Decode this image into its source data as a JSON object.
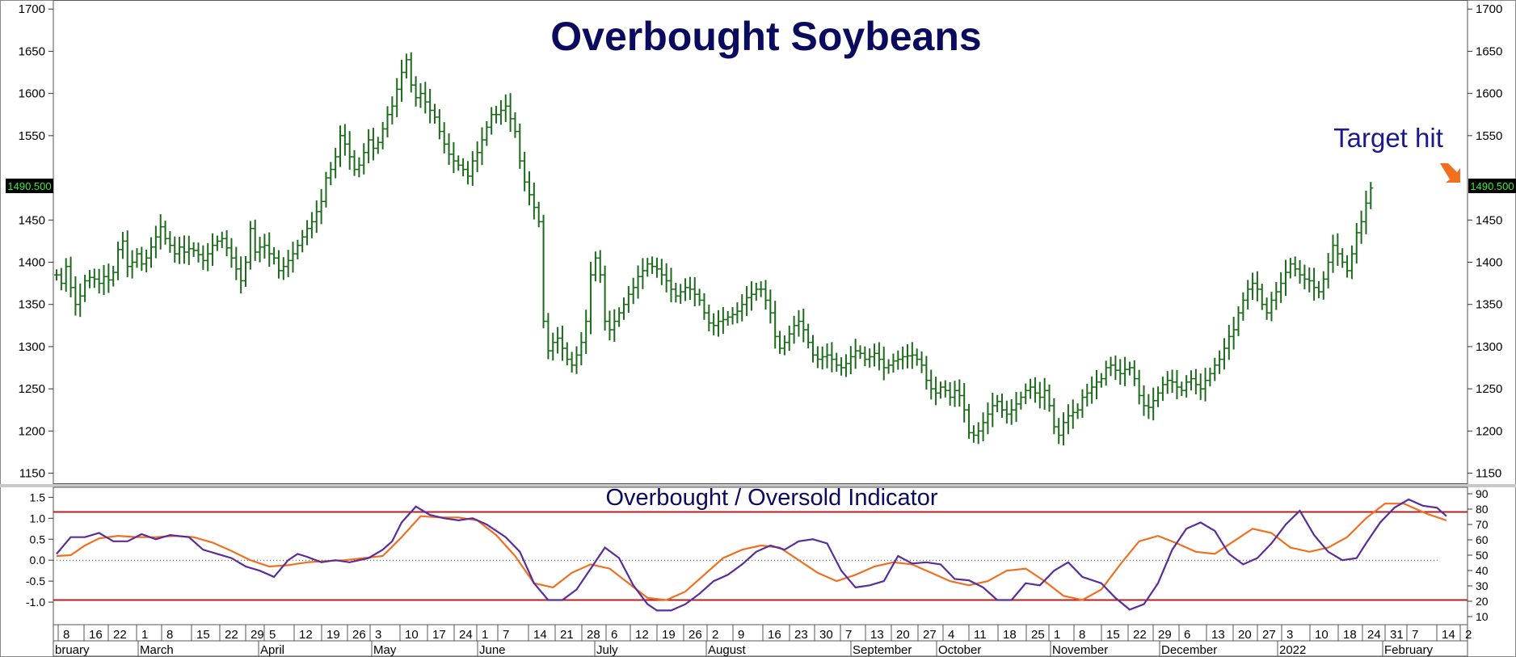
{
  "title": "Overbought Soybeans",
  "annotation": "Target hit",
  "price_label": "1490.500",
  "indicator_title": "Overbought / Oversold Indicator",
  "colors": {
    "bars": "#1a6b1a",
    "title": "#0a0a5e",
    "annotation": "#1a1a8c",
    "arrow": "#f07020",
    "fast_line": "#5a2d9c",
    "slow_line": "#f07020",
    "band": "#b22222",
    "price_box_bg": "#000000",
    "price_box_text": "#33ee33"
  },
  "chart_data": [
    {
      "type": "bar",
      "subtype": "ohlc",
      "title": "Overbought Soybeans",
      "y_ticks": [
        1150,
        1200,
        1250,
        1300,
        1350,
        1400,
        1450,
        1550,
        1600,
        1650,
        1700
      ],
      "ylim": [
        1140,
        1705
      ],
      "last_price": 1490.5,
      "note": "Target hit",
      "series": [
        {
          "values": [
            1385,
            1375,
            1395,
            1370,
            1350,
            1360,
            1378,
            1382,
            1380,
            1375,
            1383,
            1379,
            1388,
            1415,
            1425,
            1395,
            1400,
            1410,
            1398,
            1405,
            1418,
            1430,
            1442,
            1428,
            1420,
            1410,
            1418,
            1412,
            1416,
            1414,
            1409,
            1402,
            1410,
            1420,
            1425,
            1428,
            1417,
            1405,
            1392,
            1378,
            1400,
            1440,
            1412,
            1418,
            1420,
            1410,
            1405,
            1390,
            1395,
            1402,
            1410,
            1420,
            1430,
            1440,
            1448,
            1460,
            1472,
            1500,
            1510,
            1525,
            1550,
            1540,
            1525,
            1510,
            1515,
            1530,
            1545,
            1535,
            1542,
            1558,
            1575,
            1585,
            1605,
            1625,
            1640,
            1610,
            1595,
            1600,
            1590,
            1580,
            1572,
            1555,
            1540,
            1528,
            1520,
            1515,
            1510,
            1502,
            1520,
            1530,
            1545,
            1560,
            1575,
            1575,
            1580,
            1585,
            1570,
            1555,
            1520,
            1495,
            1480,
            1465,
            1448,
            1330,
            1295,
            1305,
            1310,
            1298,
            1285,
            1278,
            1290,
            1305,
            1330,
            1385,
            1405,
            1385,
            1330,
            1320,
            1330,
            1340,
            1350,
            1362,
            1370,
            1383,
            1390,
            1398,
            1395,
            1392,
            1385,
            1378,
            1368,
            1360,
            1365,
            1370,
            1368,
            1362,
            1355,
            1340,
            1328,
            1325,
            1330,
            1332,
            1335,
            1338,
            1342,
            1350,
            1358,
            1362,
            1368,
            1368,
            1355,
            1340,
            1312,
            1298,
            1305,
            1315,
            1325,
            1330,
            1320,
            1305,
            1290,
            1285,
            1288,
            1290,
            1285,
            1278,
            1275,
            1280,
            1288,
            1295,
            1292,
            1285,
            1288,
            1292,
            1285,
            1275,
            1278,
            1283,
            1285,
            1288,
            1289,
            1290,
            1285,
            1278,
            1260,
            1250,
            1245,
            1252,
            1248,
            1240,
            1248,
            1242,
            1225,
            1198,
            1195,
            1200,
            1210,
            1220,
            1230,
            1235,
            1225,
            1220,
            1225,
            1232,
            1240,
            1248,
            1252,
            1245,
            1240,
            1248,
            1230,
            1205,
            1195,
            1210,
            1218,
            1222,
            1225,
            1240,
            1245,
            1252,
            1258,
            1262,
            1275,
            1278,
            1272,
            1268,
            1273,
            1275,
            1262,
            1242,
            1230,
            1228,
            1236,
            1245,
            1255,
            1260,
            1258,
            1252,
            1248,
            1258,
            1262,
            1255,
            1250,
            1260,
            1268,
            1278,
            1285,
            1298,
            1312,
            1320,
            1340,
            1355,
            1368,
            1375,
            1368,
            1350,
            1340,
            1355,
            1365,
            1375,
            1388,
            1398,
            1392,
            1385,
            1380,
            1378,
            1370,
            1365,
            1380,
            1400,
            1420,
            1410,
            1400,
            1390,
            1410,
            1435,
            1448,
            1470,
            1488
          ]
        }
      ]
    },
    {
      "type": "line",
      "title": "Overbought / Oversold Indicator",
      "y_ticks_left": [
        1.5,
        1.0,
        0.5,
        0.0,
        -0.5,
        -1.0
      ],
      "y_ticks_left_labels": [
        "1.5",
        "1.0",
        "0.5",
        "0.0",
        "-0.5",
        "-1.0"
      ],
      "y_ticks_right": [
        90,
        80,
        70,
        60,
        50,
        40,
        30,
        20,
        10
      ],
      "ylim": [
        -1.5,
        1.7
      ],
      "bands": [
        1.15,
        -0.95
      ],
      "zero_line": 0,
      "series": [
        {
          "x": [
            0,
            3,
            6,
            9,
            12,
            15,
            18,
            21,
            24,
            28,
            31,
            34,
            37,
            40,
            43,
            46,
            49,
            51,
            53,
            56,
            59,
            62,
            66,
            69,
            71,
            73,
            76,
            79,
            82,
            85,
            88,
            91,
            95,
            98,
            101,
            104,
            107,
            110,
            113,
            116,
            119,
            122,
            125,
            127,
            130,
            133,
            136,
            139,
            142,
            145,
            148,
            151,
            154,
            157,
            160,
            163,
            166,
            169,
            172,
            175,
            178,
            181,
            184,
            187,
            190,
            193,
            196,
            199,
            202,
            205,
            208,
            211,
            214,
            217,
            221,
            224,
            227,
            230,
            233,
            236,
            239,
            242,
            245,
            248,
            251,
            254,
            257,
            260,
            263,
            266,
            269,
            272,
            275,
            277,
            280,
            283,
            286,
            289,
            292,
            294
          ],
          "values": [
            0.15,
            0.55,
            0.55,
            0.65,
            0.45,
            0.45,
            0.62,
            0.5,
            0.6,
            0.55,
            0.25,
            0.15,
            0.05,
            -0.15,
            -0.25,
            -0.4,
            0.0,
            0.15,
            0.08,
            -0.05,
            0.0,
            -0.05,
            0.05,
            0.25,
            0.45,
            0.9,
            1.28,
            1.08,
            1.0,
            0.95,
            1.0,
            0.85,
            0.55,
            0.2,
            -0.55,
            -0.95,
            -0.95,
            -0.7,
            -0.2,
            0.3,
            0.05,
            -0.6,
            -1.05,
            -1.2,
            -1.2,
            -1.05,
            -0.8,
            -0.5,
            -0.35,
            -0.1,
            0.2,
            0.35,
            0.25,
            0.45,
            0.5,
            0.4,
            -0.25,
            -0.65,
            -0.6,
            -0.5,
            0.1,
            -0.08,
            -0.05,
            -0.1,
            -0.45,
            -0.48,
            -0.65,
            -0.95,
            -0.95,
            -0.55,
            -0.6,
            -0.25,
            -0.05,
            -0.4,
            -0.55,
            -0.9,
            -1.18,
            -1.05,
            -0.55,
            0.25,
            0.75,
            0.9,
            0.7,
            0.15,
            -0.1,
            0.05,
            0.4,
            0.85,
            1.18,
            0.6,
            0.2,
            0.0,
            0.05,
            0.4,
            0.9,
            1.25,
            1.45,
            1.3,
            1.25,
            1.05
          ]
        },
        {
          "x": [
            0,
            3,
            6,
            9,
            13,
            17,
            21,
            25,
            29,
            33,
            37,
            41,
            45,
            49,
            53,
            57,
            61,
            65,
            69,
            73,
            77,
            81,
            85,
            89,
            93,
            97,
            101,
            105,
            109,
            113,
            117,
            121,
            125,
            129,
            133,
            137,
            141,
            145,
            149,
            153,
            157,
            161,
            165,
            169,
            173,
            177,
            181,
            185,
            189,
            193,
            197,
            201,
            205,
            209,
            213,
            217,
            221,
            225,
            229,
            233,
            237,
            241,
            245,
            249,
            253,
            257,
            261,
            265,
            269,
            273,
            277,
            281,
            285,
            290,
            294
          ],
          "values": [
            0.1,
            0.12,
            0.35,
            0.52,
            0.58,
            0.55,
            0.55,
            0.58,
            0.55,
            0.42,
            0.22,
            0.0,
            -0.15,
            -0.12,
            -0.05,
            -0.02,
            0.0,
            0.05,
            0.1,
            0.55,
            1.05,
            1.02,
            1.02,
            0.95,
            0.6,
            0.1,
            -0.55,
            -0.65,
            -0.3,
            -0.1,
            -0.2,
            -0.55,
            -0.9,
            -0.95,
            -0.75,
            -0.35,
            0.05,
            0.25,
            0.35,
            0.3,
            0.0,
            -0.3,
            -0.5,
            -0.35,
            -0.15,
            -0.05,
            -0.1,
            -0.3,
            -0.5,
            -0.6,
            -0.5,
            -0.25,
            -0.2,
            -0.5,
            -0.85,
            -0.95,
            -0.7,
            -0.1,
            0.45,
            0.58,
            0.4,
            0.2,
            0.15,
            0.45,
            0.75,
            0.65,
            0.3,
            0.2,
            0.3,
            0.55,
            1.0,
            1.35,
            1.35,
            1.1,
            0.95
          ]
        }
      ]
    }
  ],
  "x_axis": {
    "day_ticks": [
      "8",
      "16",
      "22",
      "1",
      "8",
      "15",
      "22",
      "29",
      "5",
      "12",
      "19",
      "26",
      "3",
      "10",
      "17",
      "24",
      "1",
      "7",
      "14",
      "21",
      "28",
      "6",
      "12",
      "19",
      "26",
      "2",
      "9",
      "16",
      "23",
      "30",
      "7",
      "13",
      "20",
      "27",
      "4",
      "11",
      "18",
      "25",
      "1",
      "8",
      "15",
      "22",
      "29",
      "6",
      "13",
      "20",
      "27",
      "3",
      "10",
      "18",
      "24",
      "31",
      "7",
      "14",
      "2"
    ],
    "month_labels": [
      "bruary",
      "March",
      "April",
      "May",
      "June",
      "July",
      "August",
      "September",
      "October",
      "November",
      "December",
      "2022",
      "February"
    ]
  }
}
